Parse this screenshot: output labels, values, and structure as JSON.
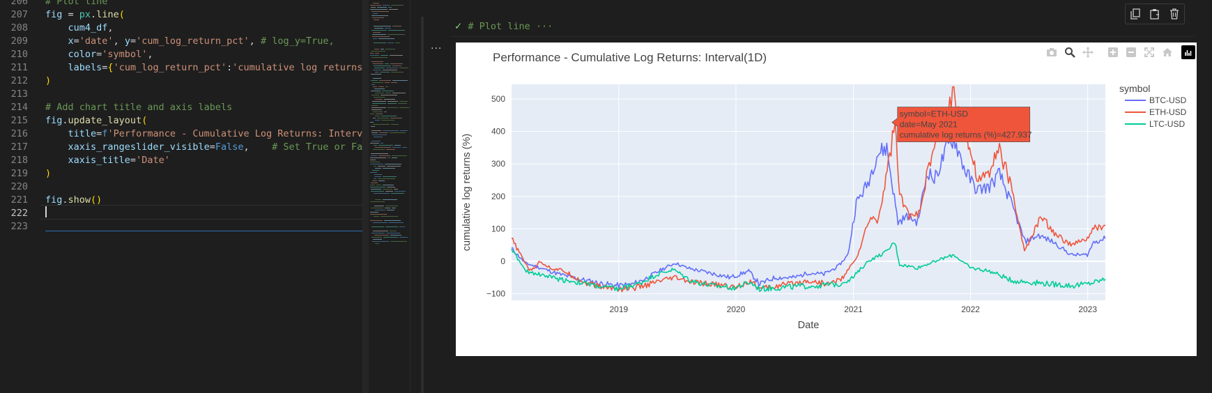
{
  "editor": {
    "lines": [
      {
        "n": "206",
        "tokens": [
          {
            "t": "# Plot line",
            "c": "c-cm"
          }
        ]
      },
      {
        "n": "207",
        "tokens": [
          {
            "t": "fig",
            "c": "c-var"
          },
          {
            "t": " = ",
            "c": ""
          },
          {
            "t": "px",
            "c": "c-cls"
          },
          {
            "t": ".",
            "c": ""
          },
          {
            "t": "line",
            "c": "c-fn"
          },
          {
            "t": "(",
            "c": "c-br"
          }
        ]
      },
      {
        "n": "208",
        "tokens": [
          {
            "t": "    cum4_df",
            "c": "c-var"
          },
          {
            "t": ",",
            "c": ""
          }
        ]
      },
      {
        "n": "209",
        "tokens": [
          {
            "t": "    x",
            "c": "c-var"
          },
          {
            "t": "=",
            "c": ""
          },
          {
            "t": "'date'",
            "c": "c-str"
          },
          {
            "t": ", ",
            "c": ""
          },
          {
            "t": "y",
            "c": "c-var"
          },
          {
            "t": "=",
            "c": ""
          },
          {
            "t": "'cum_log_return_pct'",
            "c": "c-str"
          },
          {
            "t": ", ",
            "c": ""
          },
          {
            "t": "# log_y=True,",
            "c": "c-cm"
          }
        ]
      },
      {
        "n": "210",
        "tokens": [
          {
            "t": "    color",
            "c": "c-var"
          },
          {
            "t": "=",
            "c": ""
          },
          {
            "t": "'symbol'",
            "c": "c-str"
          },
          {
            "t": ",",
            "c": ""
          }
        ]
      },
      {
        "n": "211",
        "tokens": [
          {
            "t": "    labels",
            "c": "c-var"
          },
          {
            "t": "=",
            "c": ""
          },
          {
            "t": "{",
            "c": "c-br"
          },
          {
            "t": "'cum_log_return_pct'",
            "c": "c-str"
          },
          {
            "t": ":",
            "c": ""
          },
          {
            "t": "'cumulative log returns (%",
            "c": "c-str"
          }
        ]
      },
      {
        "n": "212",
        "tokens": [
          {
            "t": ")",
            "c": "c-br"
          }
        ]
      },
      {
        "n": "213",
        "tokens": []
      },
      {
        "n": "214",
        "tokens": [
          {
            "t": "# Add chart title and axis labels",
            "c": "c-cm"
          }
        ]
      },
      {
        "n": "215",
        "tokens": [
          {
            "t": "fig",
            "c": "c-var"
          },
          {
            "t": ".",
            "c": ""
          },
          {
            "t": "update_layout",
            "c": "c-fn"
          },
          {
            "t": "(",
            "c": "c-br"
          }
        ]
      },
      {
        "n": "216",
        "tokens": [
          {
            "t": "    title",
            "c": "c-var"
          },
          {
            "t": "=",
            "c": ""
          },
          {
            "t": "f",
            "c": "c-kw"
          },
          {
            "t": "'Performance - Cumulative Log Returns: Interval(",
            "c": "c-str"
          }
        ]
      },
      {
        "n": "217",
        "tokens": [
          {
            "t": "    xaxis_rangeslider_visible",
            "c": "c-var"
          },
          {
            "t": "=",
            "c": ""
          },
          {
            "t": "False",
            "c": "c-kw"
          },
          {
            "t": ",    ",
            "c": ""
          },
          {
            "t": "# Set True or False",
            "c": "c-cm"
          }
        ]
      },
      {
        "n": "218",
        "tokens": [
          {
            "t": "    xaxis_title",
            "c": "c-var"
          },
          {
            "t": "=",
            "c": ""
          },
          {
            "t": "'Date'",
            "c": "c-str"
          }
        ]
      },
      {
        "n": "219",
        "tokens": [
          {
            "t": ")",
            "c": "c-br"
          }
        ]
      },
      {
        "n": "220",
        "tokens": []
      },
      {
        "n": "221",
        "tokens": [
          {
            "t": "fig",
            "c": "c-var"
          },
          {
            "t": ".",
            "c": ""
          },
          {
            "t": "show",
            "c": "c-fn"
          },
          {
            "t": "()",
            "c": "c-br"
          }
        ]
      },
      {
        "n": "222",
        "tokens": []
      },
      {
        "n": "223",
        "tokens": []
      }
    ],
    "active_line": "222"
  },
  "output_cell": {
    "header_check": "✓",
    "header_text": "# Plot line ···",
    "more_label": "···"
  },
  "modebar": {
    "icons": [
      "camera-icon",
      "zoom-icon",
      "pan-icon",
      "zoom-in-icon",
      "zoom-out-icon",
      "autoscale-icon",
      "home-icon",
      "plotly-logo-icon"
    ]
  },
  "cell_toolbar": {
    "icons": [
      "copy-icon",
      "paste-icon",
      "delete-icon"
    ]
  },
  "chart_data": {
    "type": "line",
    "title": "Performance - Cumulative Log Returns: Interval(1D)",
    "xlabel": "Date",
    "ylabel": "cumulative log returns (%)",
    "x_ticks": [
      "2019",
      "2020",
      "2021",
      "2022",
      "2023"
    ],
    "y_ticks": [
      "−100",
      "0",
      "100",
      "200",
      "300",
      "400",
      "500"
    ],
    "xlim": [
      "2018-02-01",
      "2023-02-25"
    ],
    "ylim": [
      -120,
      545
    ],
    "grid": true,
    "legend": {
      "title": "symbol",
      "placement": "right"
    },
    "hover": {
      "series": "ETH-USD",
      "x": "2021-05-01",
      "y": 427.937,
      "lines": [
        "symbol=ETH-USD",
        "date=May 2021",
        "cumulative log returns (%)=427.937"
      ]
    },
    "series": [
      {
        "name": "BTC-USD",
        "color": "#636efa",
        "points": [
          [
            "2018-02-01",
            40
          ],
          [
            "2018-03-15",
            -5
          ],
          [
            "2018-05-01",
            -20
          ],
          [
            "2018-07-01",
            -40
          ],
          [
            "2018-09-01",
            -55
          ],
          [
            "2018-11-15",
            -70
          ],
          [
            "2019-01-01",
            -75
          ],
          [
            "2019-02-15",
            -70
          ],
          [
            "2019-04-01",
            -50
          ],
          [
            "2019-05-15",
            -25
          ],
          [
            "2019-06-26",
            -5
          ],
          [
            "2019-08-01",
            -20
          ],
          [
            "2019-09-15",
            -30
          ],
          [
            "2019-11-01",
            -40
          ],
          [
            "2019-12-15",
            -50
          ],
          [
            "2020-02-10",
            -30
          ],
          [
            "2020-03-15",
            -70
          ],
          [
            "2020-05-01",
            -50
          ],
          [
            "2020-07-01",
            -50
          ],
          [
            "2020-08-15",
            -35
          ],
          [
            "2020-10-01",
            -40
          ],
          [
            "2020-11-15",
            -15
          ],
          [
            "2020-12-15",
            20
          ],
          [
            "2021-01-10",
            180
          ],
          [
            "2021-02-15",
            240
          ],
          [
            "2021-03-15",
            330
          ],
          [
            "2021-04-15",
            350
          ],
          [
            "2021-05-20",
            120
          ],
          [
            "2021-06-20",
            140
          ],
          [
            "2021-07-20",
            120
          ],
          [
            "2021-08-20",
            280
          ],
          [
            "2021-09-10",
            250
          ],
          [
            "2021-10-20",
            350
          ],
          [
            "2021-11-10",
            380
          ],
          [
            "2021-12-15",
            280
          ],
          [
            "2022-01-20",
            220
          ],
          [
            "2022-03-01",
            230
          ],
          [
            "2022-04-01",
            270
          ],
          [
            "2022-05-15",
            160
          ],
          [
            "2022-06-20",
            60
          ],
          [
            "2022-08-01",
            80
          ],
          [
            "2022-09-15",
            60
          ],
          [
            "2022-11-10",
            20
          ],
          [
            "2022-12-31",
            20
          ],
          [
            "2023-01-20",
            60
          ],
          [
            "2023-02-25",
            70
          ]
        ]
      },
      {
        "name": "ETH-USD",
        "color": "#ef553b",
        "points": [
          [
            "2018-02-01",
            70
          ],
          [
            "2018-03-01",
            20
          ],
          [
            "2018-04-01",
            -30
          ],
          [
            "2018-05-01",
            0
          ],
          [
            "2018-06-01",
            -20
          ],
          [
            "2018-07-15",
            -30
          ],
          [
            "2018-09-15",
            -65
          ],
          [
            "2018-11-15",
            -80
          ],
          [
            "2019-01-15",
            -85
          ],
          [
            "2019-03-01",
            -80
          ],
          [
            "2019-05-15",
            -60
          ],
          [
            "2019-06-26",
            -50
          ],
          [
            "2019-08-15",
            -65
          ],
          [
            "2019-10-15",
            -70
          ],
          [
            "2019-12-31",
            -80
          ],
          [
            "2020-02-15",
            -60
          ],
          [
            "2020-03-15",
            -85
          ],
          [
            "2020-05-15",
            -75
          ],
          [
            "2020-08-15",
            -60
          ],
          [
            "2020-10-15",
            -70
          ],
          [
            "2020-12-01",
            -50
          ],
          [
            "2021-01-15",
            20
          ],
          [
            "2021-02-20",
            130
          ],
          [
            "2021-03-20",
            130
          ],
          [
            "2021-04-20",
            300
          ],
          [
            "2021-05-11",
            430
          ],
          [
            "2021-05-25",
            200
          ],
          [
            "2021-06-25",
            140
          ],
          [
            "2021-07-20",
            140
          ],
          [
            "2021-08-25",
            290
          ],
          [
            "2021-09-10",
            350
          ],
          [
            "2021-10-20",
            470
          ],
          [
            "2021-11-10",
            520
          ],
          [
            "2021-12-10",
            430
          ],
          [
            "2022-01-25",
            250
          ],
          [
            "2022-03-01",
            280
          ],
          [
            "2022-04-01",
            350
          ],
          [
            "2022-05-15",
            200
          ],
          [
            "2022-06-18",
            30
          ],
          [
            "2022-08-10",
            140
          ],
          [
            "2022-09-15",
            90
          ],
          [
            "2022-11-10",
            50
          ],
          [
            "2022-12-31",
            70
          ],
          [
            "2023-01-20",
            100
          ],
          [
            "2023-02-25",
            110
          ]
        ]
      },
      {
        "name": "LTC-USD",
        "color": "#00cc96",
        "points": [
          [
            "2018-02-01",
            40
          ],
          [
            "2018-03-15",
            -30
          ],
          [
            "2018-05-01",
            -40
          ],
          [
            "2018-07-01",
            -55
          ],
          [
            "2018-09-01",
            -65
          ],
          [
            "2018-11-15",
            -80
          ],
          [
            "2019-01-01",
            -85
          ],
          [
            "2019-03-01",
            -70
          ],
          [
            "2019-05-01",
            -40
          ],
          [
            "2019-06-20",
            -25
          ],
          [
            "2019-08-15",
            -60
          ],
          [
            "2019-10-15",
            -75
          ],
          [
            "2019-12-31",
            -80
          ],
          [
            "2020-02-15",
            -65
          ],
          [
            "2020-03-15",
            -85
          ],
          [
            "2020-06-01",
            -80
          ],
          [
            "2020-09-01",
            -75
          ],
          [
            "2020-11-15",
            -70
          ],
          [
            "2020-12-31",
            -50
          ],
          [
            "2021-02-15",
            0
          ],
          [
            "2021-04-15",
            30
          ],
          [
            "2021-05-10",
            60
          ],
          [
            "2021-05-25",
            -10
          ],
          [
            "2021-07-20",
            -20
          ],
          [
            "2021-09-10",
            0
          ],
          [
            "2021-11-10",
            20
          ],
          [
            "2021-12-31",
            -20
          ],
          [
            "2022-03-01",
            -30
          ],
          [
            "2022-05-15",
            -60
          ],
          [
            "2022-07-15",
            -65
          ],
          [
            "2022-09-15",
            -70
          ],
          [
            "2022-11-15",
            -75
          ],
          [
            "2022-12-31",
            -70
          ],
          [
            "2023-02-25",
            -55
          ]
        ]
      }
    ]
  }
}
